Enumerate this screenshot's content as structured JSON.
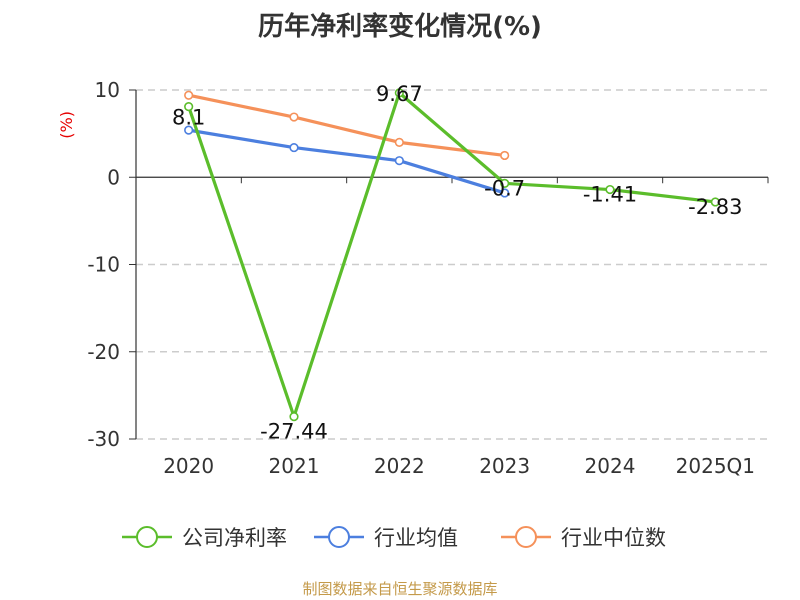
{
  "title": "历年净利率变化情况(%)",
  "source": "制图数据来自恒生聚源数据库",
  "colors": {
    "company": "#5bbd2b",
    "avg": "#4c7fdf",
    "median": "#f5915a"
  },
  "chart_data": {
    "type": "line",
    "title": "历年净利率变化情况(%)",
    "ylabel": "(%)",
    "categories": [
      "2020",
      "2021",
      "2022",
      "2023",
      "2024",
      "2025Q1"
    ],
    "ylim": [
      -30,
      10
    ],
    "yticks": [
      "10",
      "0",
      "-10",
      "-20",
      "-30"
    ],
    "grid": true,
    "legend_position": "bottom",
    "series": [
      {
        "name": "公司净利率",
        "values": [
          8.1,
          -27.44,
          9.67,
          -0.7,
          -1.41,
          -2.83
        ],
        "labels": [
          "8.1",
          "-27.44",
          "9.67",
          "-0.7",
          "-1.41",
          "-2.83"
        ]
      },
      {
        "name": "行业均值",
        "values": [
          5.4,
          3.4,
          1.9,
          -1.8,
          null,
          null
        ]
      },
      {
        "name": "行业中位数",
        "values": [
          9.4,
          6.9,
          4.0,
          2.5,
          null,
          null
        ]
      }
    ]
  }
}
